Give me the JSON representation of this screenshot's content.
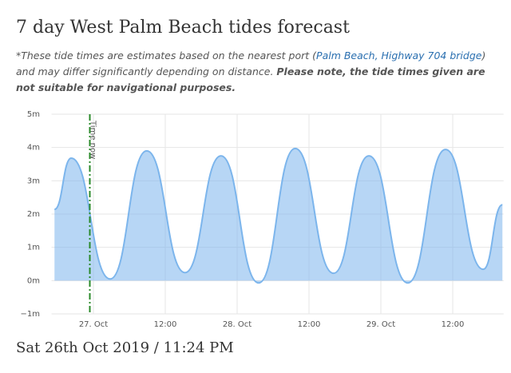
{
  "header": {
    "title": "7 day West Palm Beach tides forecast",
    "note": [
      "*These tide times are estimates based on the nearest port (",
      "Palm Beach, Highway 704 bridge",
      ") and may differ significantly depending on distance. ",
      "Please note, the tide times given are not suitable for navigational purposes."
    ]
  },
  "chart_data": {
    "type": "area",
    "x": [
      -6.5,
      -3.7,
      2.8,
      8.9,
      15.3,
      21.3,
      27.6,
      33.7,
      40.1,
      46,
      52.5,
      58.8,
      65.1,
      68.3
    ],
    "values": [
      2.14,
      3.68,
      0.05,
      3.9,
      0.24,
      3.75,
      -0.07,
      3.97,
      0.22,
      3.75,
      -0.07,
      3.94,
      0.34,
      2.28
    ],
    "color": "#7cb5ec",
    "xlim": [
      -7,
      68.5
    ],
    "xticks": [
      {
        "value": 0,
        "label": "27. Oct"
      },
      {
        "value": 12,
        "label": "12:00"
      },
      {
        "value": 24,
        "label": "28. Oct"
      },
      {
        "value": 36,
        "label": "12:00"
      },
      {
        "value": 48,
        "label": "29. Oct"
      },
      {
        "value": 60,
        "label": "12:00"
      }
    ],
    "ylim": [
      -1,
      5
    ],
    "yticks": [
      {
        "value": 5,
        "label": "5m"
      },
      {
        "value": 4,
        "label": "4m"
      },
      {
        "value": 3,
        "label": "3m"
      },
      {
        "value": 2,
        "label": "2m"
      },
      {
        "value": 1,
        "label": "1m"
      },
      {
        "value": 0,
        "label": "0m"
      },
      {
        "value": -1,
        "label": "−1m"
      }
    ],
    "grid": true,
    "marker": {
      "x": -0.6,
      "label": "Time now",
      "color": "#2a8a2a"
    }
  },
  "footer": "Sat 26th Oct 2019 / 11:24 PM"
}
